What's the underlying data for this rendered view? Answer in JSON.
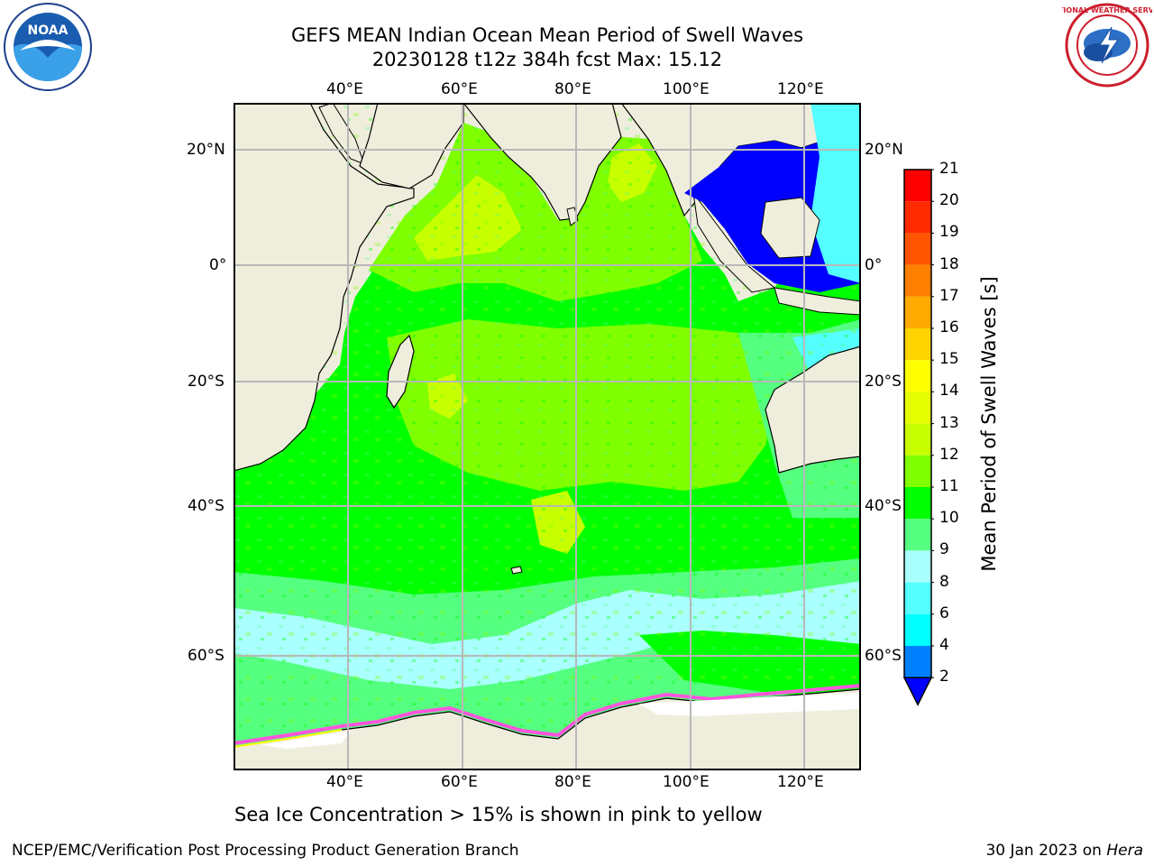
{
  "title_line1": "GEFS MEAN Indian Ocean Mean Period of Swell Waves",
  "title_line2": "20230128 t12z 384h fcst   Max: 15.12",
  "axes": {
    "lon_labels": [
      "40°E",
      "60°E",
      "80°E",
      "100°E",
      "120°E"
    ],
    "lat_labels_left": [
      "20°N",
      "0°",
      "20°S",
      "40°S",
      "60°S"
    ],
    "lat_labels_right": [
      "20°N",
      "0°",
      "20°S",
      "40°S",
      "60°S"
    ]
  },
  "colorbar": {
    "title": "Mean Period of Swell Waves [s]",
    "ticks": [
      "21",
      "20",
      "19",
      "18",
      "17",
      "16",
      "15",
      "14",
      "13",
      "12",
      "11",
      "10",
      "9",
      "8",
      "6",
      "4",
      "2"
    ],
    "colors": [
      "#ff0000",
      "#ff2a00",
      "#ff5500",
      "#ff7f00",
      "#ffaa00",
      "#ffd400",
      "#ffff00",
      "#e6ff00",
      "#c8ff00",
      "#7fff00",
      "#00ff00",
      "#55ff80",
      "#aaffff",
      "#55ffff",
      "#00ffff",
      "#0080ff",
      "#0000ff"
    ]
  },
  "note": "Sea Ice Concentration > 15% is shown in pink to yellow",
  "footer_left": "NCEP/EMC/Verification Post Processing Product Generation Branch",
  "footer_date": "30 Jan 2023 on ",
  "footer_machine": "Hera",
  "logos": {
    "noaa_text": "NOAA",
    "nws_text": "NATIONAL WEATHER SERVICE"
  }
}
